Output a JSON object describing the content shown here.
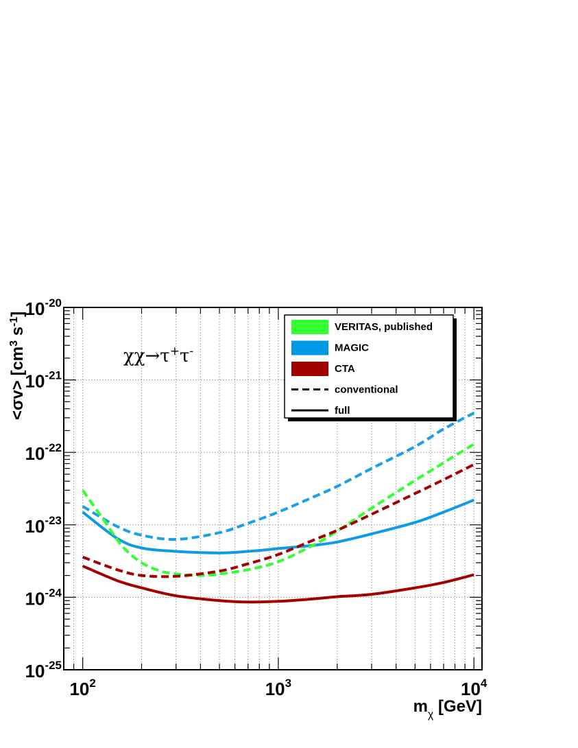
{
  "chart_data": {
    "type": "line",
    "title": "",
    "annotation": {
      "base": "χχ→τ",
      "sup1": "+",
      "mid": "τ",
      "sup2": "-"
    },
    "xlabel": {
      "main": "m",
      "sub": "χ",
      "unit": " [GeV]"
    },
    "ylabel": {
      "prefix": "<σv> [cm",
      "sup1": "3",
      "mid": " s",
      "sup2": "-1",
      "suffix": "]"
    },
    "x_scale": "log",
    "y_scale": "log",
    "xlim": [
      80,
      11000
    ],
    "ylim": [
      1e-25,
      1e-20
    ],
    "grid": true,
    "legend_position": "top-right",
    "x_ticks": [
      {
        "value": 100,
        "base": "10",
        "exp": "2"
      },
      {
        "value": 1000,
        "base": "10",
        "exp": "3"
      },
      {
        "value": 10000,
        "base": "10",
        "exp": "4"
      }
    ],
    "y_ticks": [
      {
        "value": 1e-25,
        "base": "10",
        "exp": "-25"
      },
      {
        "value": 1e-24,
        "base": "10",
        "exp": "-24"
      },
      {
        "value": 1e-23,
        "base": "10",
        "exp": "-23"
      },
      {
        "value": 1e-22,
        "base": "10",
        "exp": "-22"
      },
      {
        "value": 1e-21,
        "base": "10",
        "exp": "-21"
      },
      {
        "value": 1e-20,
        "base": "10",
        "exp": "-20"
      }
    ],
    "legend": [
      {
        "label": "VERITAS, published",
        "kind": "box",
        "color": "#33ff33"
      },
      {
        "label": "MAGIC",
        "kind": "box",
        "color": "#0099e6"
      },
      {
        "label": "CTA",
        "kind": "box",
        "color": "#a30000"
      },
      {
        "label": "conventional",
        "kind": "dashed",
        "color": "#000000"
      },
      {
        "label": "full",
        "kind": "solid",
        "color": "#000000"
      }
    ],
    "series": [
      {
        "experiment": "MAGIC",
        "style": "dashed",
        "color": "#1aa0e6",
        "x": [
          100,
          150,
          200,
          300,
          500,
          700,
          1000,
          1500,
          2000,
          3000,
          5000,
          7000,
          10000
        ],
        "y": [
          1.8e-23,
          9.5e-24,
          7.2e-24,
          6.3e-24,
          7.8e-24,
          1.05e-23,
          1.5e-23,
          2.4e-23,
          3.4e-23,
          6e-23,
          1.2e-22,
          2.1e-22,
          3.5e-22
        ]
      },
      {
        "experiment": "MAGIC",
        "style": "solid",
        "color": "#0f9ae6",
        "x": [
          100,
          150,
          200,
          300,
          500,
          700,
          1000,
          1500,
          2000,
          3000,
          5000,
          7000,
          10000
        ],
        "y": [
          1.5e-23,
          6.5e-24,
          4.8e-24,
          4.3e-24,
          4.1e-24,
          4.3e-24,
          4.7e-24,
          5.2e-24,
          5.8e-24,
          7.5e-24,
          1.08e-23,
          1.5e-23,
          2.2e-23
        ]
      },
      {
        "experiment": "VERITAS, published",
        "style": "dashed",
        "color": "#33ff33",
        "x": [
          100,
          130,
          160,
          200,
          250,
          300,
          400,
          500,
          700,
          1000,
          1500,
          2000,
          3000,
          5000,
          7000,
          10000
        ],
        "y": [
          3e-23,
          1.1e-23,
          5e-24,
          3e-24,
          2.3e-24,
          2.1e-24,
          2e-24,
          2.1e-24,
          2.4e-24,
          3.1e-24,
          5.2e-24,
          8.2e-24,
          1.7e-23,
          4.1e-23,
          7.2e-23,
          1.3e-22
        ]
      },
      {
        "experiment": "CTA",
        "style": "dashed",
        "color": "#a30000",
        "x": [
          100,
          150,
          200,
          300,
          500,
          700,
          1000,
          1500,
          2000,
          3000,
          5000,
          7000,
          10000
        ],
        "y": [
          3.6e-24,
          2.4e-24,
          2e-24,
          1.95e-24,
          2.3e-24,
          2.9e-24,
          3.9e-24,
          6.1e-24,
          8.4e-24,
          1.4e-23,
          2.7e-23,
          4.2e-23,
          6.8e-23
        ]
      },
      {
        "experiment": "CTA",
        "style": "solid",
        "color": "#a30000",
        "x": [
          100,
          150,
          200,
          300,
          500,
          700,
          1000,
          1500,
          2000,
          3000,
          5000,
          7000,
          10000
        ],
        "y": [
          2.7e-24,
          1.7e-24,
          1.35e-24,
          1.05e-24,
          9e-25,
          8.6e-25,
          8.8e-25,
          9.5e-25,
          1.02e-24,
          1.1e-24,
          1.35e-24,
          1.6e-24,
          2.05e-24
        ]
      }
    ]
  }
}
